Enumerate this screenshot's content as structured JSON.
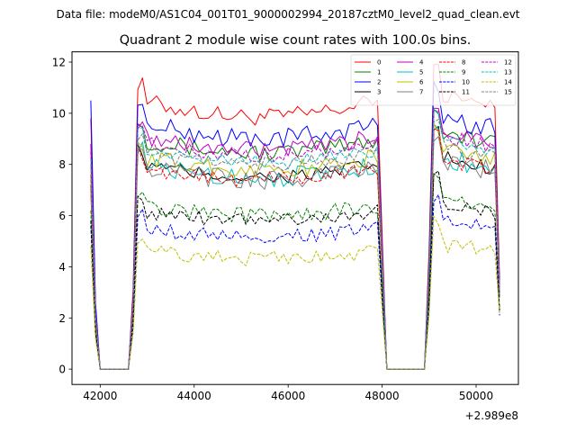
{
  "figure": {
    "suptitle": "Data file: modeM0/AS1C04_001T01_9000002994_20187cztM0_level2_quad_clean.evt"
  },
  "chart_data": {
    "type": "line",
    "title": "Quadrant 2 module wise count rates with 100.0s bins.",
    "xlabel": "",
    "ylabel": "",
    "x_offset_label": "+2.989e8",
    "xlim": [
      41400,
      50900
    ],
    "ylim": [
      -0.6,
      12.4
    ],
    "x_ticks": [
      42000,
      44000,
      46000,
      48000,
      50000
    ],
    "x_tick_labels": [
      "42000",
      "44000",
      "46000",
      "48000",
      "50000"
    ],
    "y_ticks": [
      0,
      2,
      4,
      6,
      8,
      10,
      12
    ],
    "y_tick_labels": [
      "0",
      "2",
      "4",
      "6",
      "8",
      "10",
      "12"
    ],
    "grid": false,
    "legend_position": "top-right",
    "legend_columns": 4,
    "segments": [
      {
        "start": 41800,
        "end": 42100
      },
      {
        "start": 42100,
        "end": 42600,
        "gap": true
      },
      {
        "start": 42700,
        "end": 48000
      },
      {
        "start": 48100,
        "end": 48900,
        "gap": true
      },
      {
        "start": 49000,
        "end": 50500
      }
    ],
    "series": [
      {
        "name": "0",
        "color": "#ff0000",
        "dash": "solid",
        "level": 10.5,
        "first": 9.8,
        "end": 3.5,
        "amp": 0.35
      },
      {
        "name": "1",
        "color": "#008000",
        "dash": "solid",
        "level": 9.0,
        "first": 7.0,
        "end": 3.0,
        "amp": 0.35
      },
      {
        "name": "2",
        "color": "#0000ff",
        "dash": "solid",
        "level": 9.6,
        "first": 10.5,
        "end": 3.3,
        "amp": 0.4
      },
      {
        "name": "3",
        "color": "#000000",
        "dash": "solid",
        "level": 8.0,
        "first": 7.2,
        "end": 2.9,
        "amp": 0.3
      },
      {
        "name": "4",
        "color": "#bf00bf",
        "dash": "solid",
        "level": 9.1,
        "first": 8.8,
        "end": 3.1,
        "amp": 0.35
      },
      {
        "name": "5",
        "color": "#00bfbf",
        "dash": "solid",
        "level": 8.0,
        "first": 8.0,
        "end": 2.8,
        "amp": 0.4
      },
      {
        "name": "6",
        "color": "#bfbf00",
        "dash": "solid",
        "level": 8.3,
        "first": 7.5,
        "end": 2.9,
        "amp": 0.35
      },
      {
        "name": "7",
        "color": "#808080",
        "dash": "solid",
        "level": 7.9,
        "first": 7.0,
        "end": 2.8,
        "amp": 0.4
      },
      {
        "name": "8",
        "color": "#ff0000",
        "dash": "dashed",
        "level": 7.9,
        "first": 7.6,
        "end": 2.8,
        "amp": 0.3
      },
      {
        "name": "9",
        "color": "#008000",
        "dash": "dashed",
        "level": 6.4,
        "first": 6.2,
        "end": 2.3,
        "amp": 0.3
      },
      {
        "name": "10",
        "color": "#0000ff",
        "dash": "dashed",
        "level": 5.5,
        "first": 5.6,
        "end": 2.1,
        "amp": 0.3
      },
      {
        "name": "11",
        "color": "#000000",
        "dash": "dashed",
        "level": 6.2,
        "first": 5.8,
        "end": 2.3,
        "amp": 0.3
      },
      {
        "name": "12",
        "color": "#bf00bf",
        "dash": "dashed",
        "level": 8.9,
        "first": 8.5,
        "end": 3.0,
        "amp": 0.3
      },
      {
        "name": "13",
        "color": "#00bfbf",
        "dash": "dashed",
        "level": 8.6,
        "first": 8.2,
        "end": 2.9,
        "amp": 0.3
      },
      {
        "name": "14",
        "color": "#bfbf00",
        "dash": "dashed",
        "level": 4.6,
        "first": 4.8,
        "end": 2.2,
        "amp": 0.3
      },
      {
        "name": "15",
        "color": "#808080",
        "dash": "dashed",
        "level": 8.5,
        "first": 8.0,
        "end": 3.0,
        "amp": 0.3
      }
    ]
  }
}
